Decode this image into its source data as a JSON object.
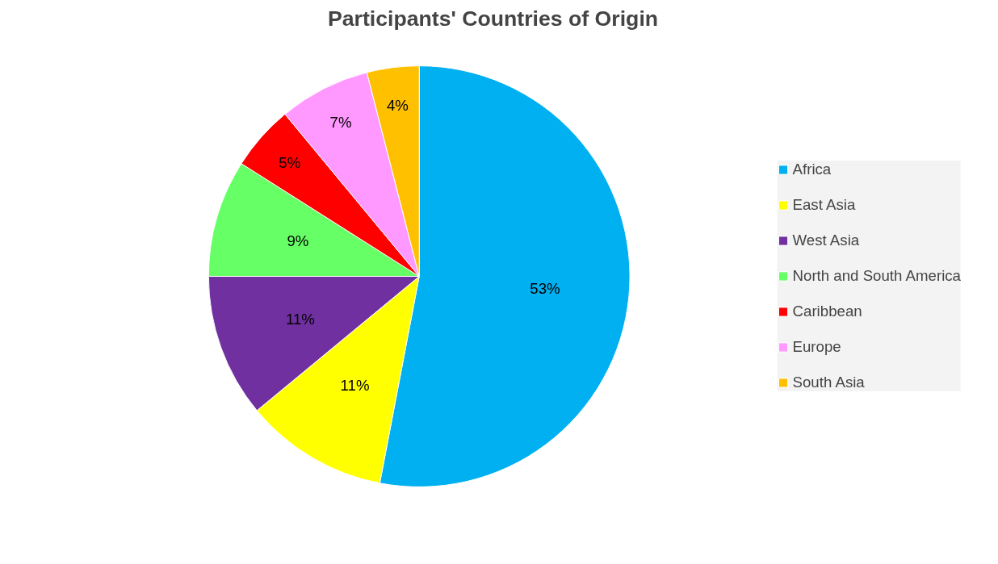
{
  "chart_data": {
    "type": "pie",
    "title": "Participants' Countries of Origin",
    "categories": [
      "Africa",
      "East Asia",
      "West Asia",
      "North and South America",
      "Caribbean",
      "Europe",
      "South Asia"
    ],
    "values": [
      53,
      11,
      11,
      9,
      5,
      7,
      4
    ],
    "colors": [
      "#00b0f0",
      "#ffff00",
      "#7030a0",
      "#66ff66",
      "#ff0000",
      "#ff99ff",
      "#ffc000"
    ],
    "value_labels": [
      "53%",
      "11%",
      "11%",
      "9%",
      "5%",
      "7%",
      "4%"
    ],
    "legend": "right"
  }
}
